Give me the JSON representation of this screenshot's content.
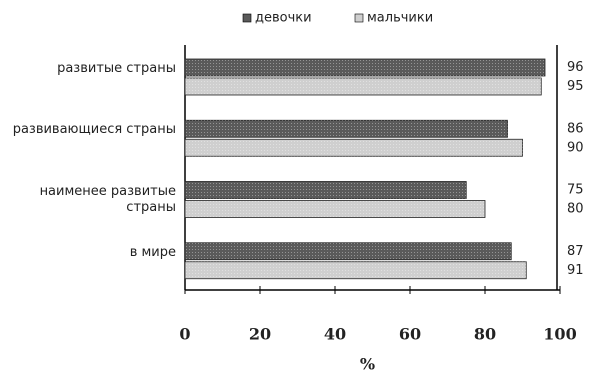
{
  "chart_data": {
    "type": "bar",
    "orientation": "horizontal",
    "categories": [
      "развитые страны",
      "развивающиеся страны",
      "наименее развитые страны",
      "в мире"
    ],
    "series": [
      {
        "name": "девочки",
        "color": "#5a5a5a",
        "values": [
          96,
          86,
          75,
          87
        ]
      },
      {
        "name": "мальчики",
        "color": "#cfcfcf",
        "values": [
          95,
          90,
          80,
          91
        ]
      }
    ],
    "xlabel": "%",
    "xlim": [
      0,
      100
    ],
    "xticks": [
      0,
      20,
      40,
      60,
      80,
      100
    ],
    "legend": "top",
    "grid": false
  }
}
